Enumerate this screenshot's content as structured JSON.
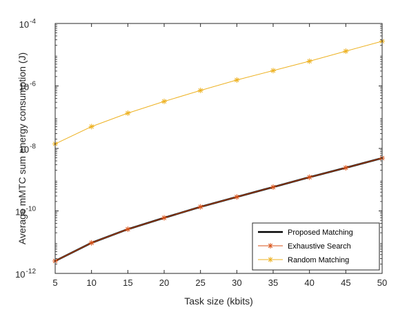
{
  "chart_data": {
    "type": "line",
    "xlabel": "Task size (kbits)",
    "ylabel": "Average mMTC sum energy consumption (J)",
    "xlim": [
      5,
      50
    ],
    "ylim": [
      1e-12,
      0.0001
    ],
    "yscale": "log",
    "x": [
      5,
      10,
      15,
      20,
      25,
      30,
      35,
      40,
      45,
      50
    ],
    "x_ticks": [
      "5",
      "10",
      "15",
      "20",
      "25",
      "30",
      "35",
      "40",
      "45",
      "50"
    ],
    "y_ticks": [
      {
        "value": 1e-12,
        "base": "10",
        "exp": "-12"
      },
      {
        "value": 1e-10,
        "base": "10",
        "exp": "-10"
      },
      {
        "value": 1e-08,
        "base": "10",
        "exp": "-8"
      },
      {
        "value": 1e-06,
        "base": "10",
        "exp": "-6"
      },
      {
        "value": 0.0001,
        "base": "10",
        "exp": "-4"
      }
    ],
    "grid": false,
    "legend_position": "bottom-right",
    "series": [
      {
        "name": "Proposed Matching",
        "color": "#000000",
        "marker": "none",
        "values": [
          2.5e-12,
          9.5e-12,
          2.6e-11,
          6e-11,
          1.35e-10,
          2.8e-10,
          5.8e-10,
          1.2e-09,
          2.4e-09,
          4.9e-09
        ]
      },
      {
        "name": "Exhaustive Search",
        "color": "#D95319",
        "marker": "asterisk",
        "values": [
          2.5e-12,
          9.5e-12,
          2.6e-11,
          6e-11,
          1.35e-10,
          2.8e-10,
          5.8e-10,
          1.2e-09,
          2.4e-09,
          4.9e-09
        ]
      },
      {
        "name": "Random Matching",
        "color": "#EDB120",
        "marker": "asterisk",
        "values": [
          1.4e-08,
          5e-08,
          1.35e-07,
          3.2e-07,
          7.2e-07,
          1.55e-06,
          3.1e-06,
          6.2e-06,
          1.3e-05,
          2.7e-05
        ]
      }
    ]
  }
}
